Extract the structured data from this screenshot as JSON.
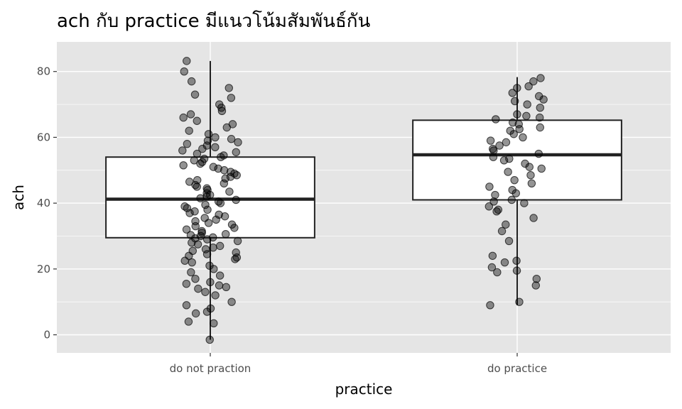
{
  "chart_data": {
    "type": "boxplot-jitter",
    "title": "ach กับ practice มีแนวโน้มสัมพันธ์กัน",
    "xlabel": "practice",
    "ylabel": "ach",
    "categories": [
      "do not praction",
      "do practice"
    ],
    "ylim": [
      -5.5,
      89
    ],
    "yticks": [
      0,
      20,
      40,
      60,
      80
    ],
    "grid": true,
    "colors": {
      "panel": "#e5e5e5",
      "grid": "#ffffff",
      "box_fill": "#ffffff",
      "box_line": "#222222",
      "point": "#000000",
      "tick_label": "#4d4d4d"
    },
    "boxes": [
      {
        "category": "do not praction",
        "min": -1.5,
        "q1": 29.5,
        "median": 41.2,
        "q3": 54,
        "max": 83.2
      },
      {
        "category": "do practice",
        "min": 9,
        "q1": 41,
        "median": 54.7,
        "q3": 65.2,
        "max": 78.3
      }
    ],
    "points": {
      "do not praction": [
        -1.5,
        3.5,
        4,
        6.5,
        7,
        8,
        9,
        10,
        12,
        13,
        14,
        14.5,
        15,
        15.5,
        16,
        17,
        18,
        19,
        20,
        21,
        22,
        22.5,
        23,
        23.5,
        24,
        24.5,
        25,
        25.5,
        26,
        26.5,
        27,
        27.5,
        28,
        28.5,
        29,
        29.3,
        29.6,
        30,
        30.3,
        30.6,
        31,
        31.5,
        32,
        32.5,
        33,
        33.5,
        34,
        34.5,
        35,
        35.5,
        36,
        36.5,
        37,
        37.5,
        38,
        38.5,
        39,
        39.5,
        40,
        40.5,
        41,
        41.5,
        42,
        42.5,
        43,
        43.5,
        44,
        44.5,
        45,
        45.5,
        46,
        46.5,
        47,
        47.5,
        48,
        48.5,
        49,
        49.5,
        50,
        50.5,
        51,
        51.5,
        52,
        52.5,
        53,
        53.5,
        54,
        54.5,
        55,
        55.5,
        56,
        56.5,
        57,
        57.5,
        58,
        58.5,
        59,
        59.5,
        60,
        61,
        62,
        63,
        64,
        65,
        66,
        67,
        68,
        69,
        70,
        72,
        73,
        75,
        77,
        80,
        83.2
      ],
      "do practice": [
        9,
        10,
        15,
        17,
        19,
        19.5,
        20.5,
        22,
        22.5,
        24,
        28.5,
        31.5,
        33.5,
        35.5,
        37.5,
        38,
        39,
        40,
        40.5,
        41,
        42.5,
        43,
        44,
        45,
        46,
        47,
        48.5,
        49.5,
        50.5,
        51,
        52,
        53,
        53.5,
        54,
        55,
        56,
        56.5,
        57.5,
        58.5,
        59,
        60,
        61,
        62,
        62.5,
        63,
        64,
        64.5,
        65.5,
        66,
        66.5,
        67,
        69,
        70,
        71,
        71.5,
        72.5,
        73.5,
        75,
        75.5,
        77,
        78
      ]
    }
  }
}
